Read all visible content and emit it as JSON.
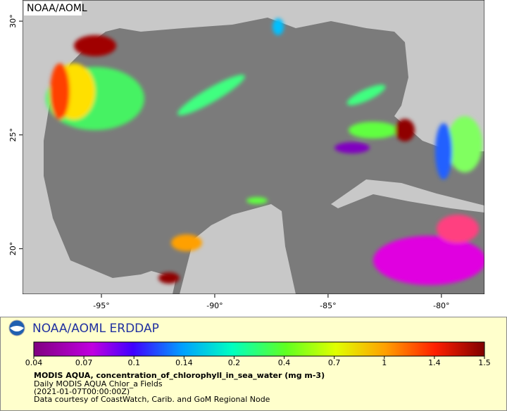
{
  "map": {
    "watermark": "NOAA/AOML",
    "lon_range": [
      -98.48,
      -78.1
    ],
    "lat_range": [
      18,
      30.93
    ],
    "lon_ticks": [
      {
        "value": -95,
        "label": "-95°"
      },
      {
        "value": -90,
        "label": "-90°"
      },
      {
        "value": -85,
        "label": "-85°"
      },
      {
        "value": -80,
        "label": "-80°"
      }
    ],
    "lat_ticks": [
      {
        "value": 20,
        "label": "20°"
      },
      {
        "value": 25,
        "label": "25°"
      },
      {
        "value": 30,
        "label": "30°"
      }
    ]
  },
  "legend": {
    "title": "NOAA/AOML ERDDAP",
    "colorbar_ticks": [
      0.04,
      0.07,
      0.1,
      0.14,
      0.2,
      0.4,
      0.7,
      1,
      1.4,
      1.5
    ],
    "variable": "MODIS AQUA, concentration_of_chlorophyll_in_sea_water (mg m-3)",
    "lines": [
      "Daily MODIS AQUA Chlor_a Fields",
      "(2021-01-07T00:00:00Z)",
      "Data courtesy of CoastWatch, Carib. and GoM Regional Node"
    ]
  }
}
